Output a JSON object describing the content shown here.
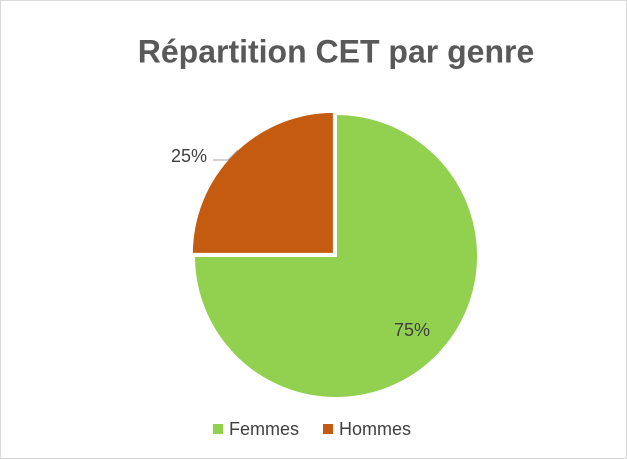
{
  "chart_data": {
    "type": "pie",
    "title": "Répartition CET par genre",
    "categories": [
      "Femmes",
      "Hommes"
    ],
    "values": [
      75,
      25
    ],
    "value_labels": [
      "75%",
      "25%"
    ],
    "colors": [
      "#92d050",
      "#c55a11"
    ],
    "legend": "bottom"
  }
}
